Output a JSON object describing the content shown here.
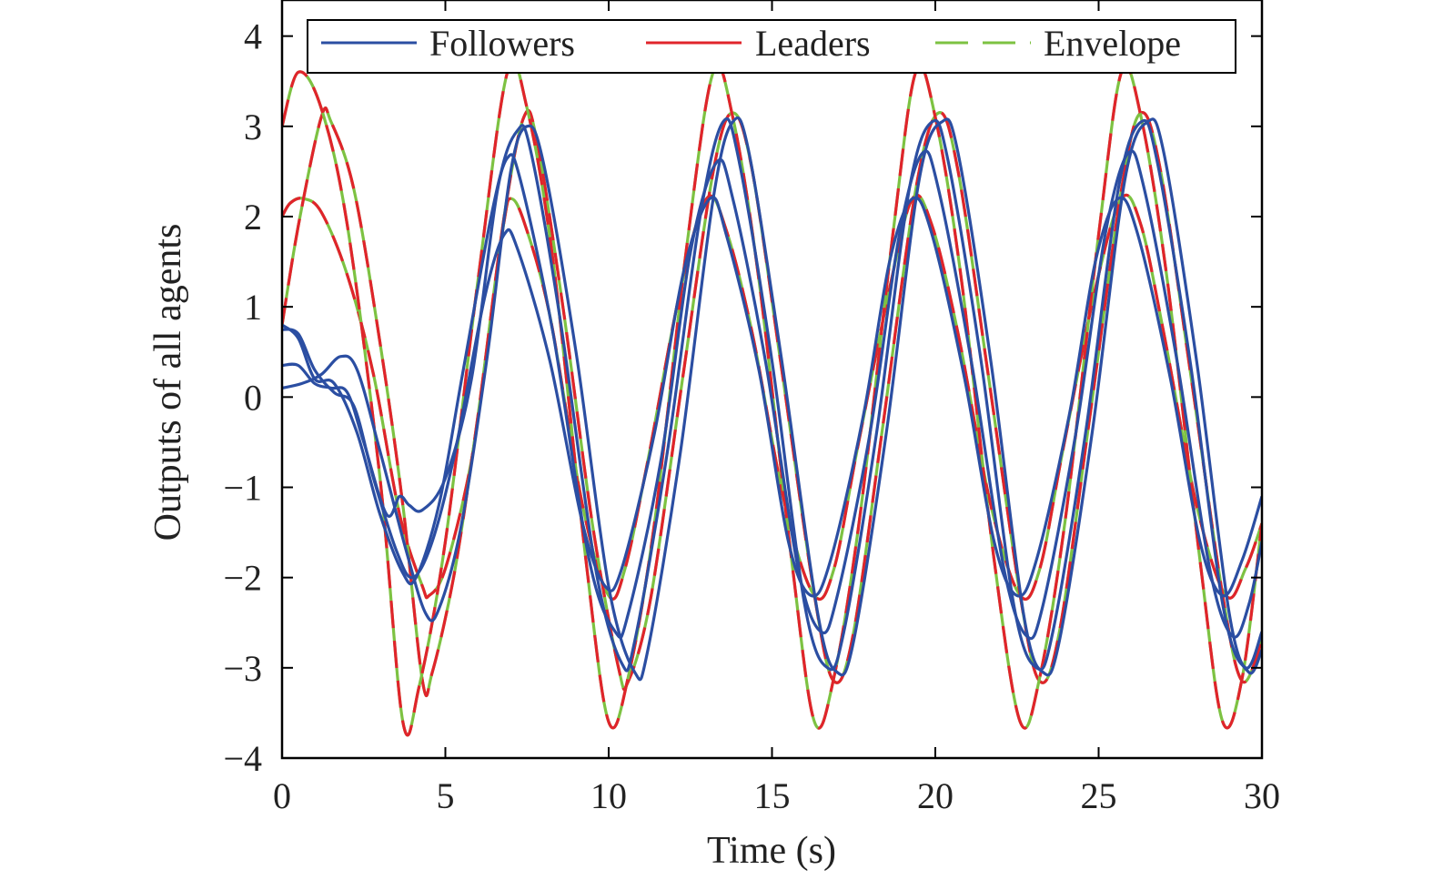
{
  "chart_data": {
    "type": "line",
    "title": "",
    "xlabel": "Time (s)",
    "ylabel": "Outputs of all agents",
    "xlim": [
      0,
      30
    ],
    "ylim": [
      -4,
      4.4
    ],
    "xticks": [
      0,
      5,
      10,
      15,
      20,
      25,
      30
    ],
    "yticks": [
      -4,
      -3,
      -2,
      -1,
      0,
      1,
      2,
      3,
      4
    ],
    "xtick_labels": [
      "0",
      "5",
      "10",
      "15",
      "20",
      "25",
      "30"
    ],
    "ytick_labels": [
      "−4",
      "−3",
      "−2",
      "−1",
      "0",
      "1",
      "2",
      "3",
      "4"
    ],
    "grid": false,
    "legend": {
      "placement": "top",
      "entries": [
        {
          "label": "Followers",
          "color": "#2b4ea2",
          "style": "solid"
        },
        {
          "label": "Leaders",
          "color": "#e0242b",
          "style": "solid"
        },
        {
          "label": "Envelope",
          "color": "#7dc242",
          "style": "dashed"
        }
      ]
    },
    "colors": {
      "followers": "#2b4ea2",
      "leaders": "#e0242b",
      "envelope": "#7dc242"
    },
    "series": [
      {
        "group": "leaders",
        "points": [
          [
            0,
            2.0
          ],
          [
            0.25,
            2.15
          ],
          [
            0.65,
            2.2
          ],
          [
            1.2,
            2.05
          ],
          [
            2.0,
            1.35
          ],
          [
            2.8,
            0.25
          ],
          [
            3.6,
            -1.3
          ],
          [
            4.3,
            -2.1
          ],
          [
            4.5,
            -2.2
          ],
          [
            5.0,
            -1.9
          ],
          [
            5.8,
            -0.7
          ],
          [
            6.4,
            0.9
          ],
          [
            6.8,
            1.95
          ],
          [
            7.0,
            2.2
          ],
          [
            7.4,
            1.95
          ],
          [
            8.2,
            0.9
          ],
          [
            9.2,
            -1.2
          ],
          [
            10.0,
            -2.2
          ],
          [
            10.5,
            -1.9
          ],
          [
            11.2,
            -0.7
          ],
          [
            12.2,
            1.2
          ],
          [
            13.0,
            2.2
          ],
          [
            13.6,
            1.85
          ],
          [
            14.4,
            0.7
          ],
          [
            15.4,
            -1.2
          ],
          [
            16.3,
            -2.2
          ],
          [
            16.9,
            -1.9
          ],
          [
            17.6,
            -0.6
          ],
          [
            18.6,
            1.2
          ],
          [
            19.3,
            2.2
          ],
          [
            19.9,
            1.9
          ],
          [
            20.7,
            0.7
          ],
          [
            21.7,
            -1.2
          ],
          [
            22.6,
            -2.2
          ],
          [
            23.2,
            -1.9
          ],
          [
            23.9,
            -0.6
          ],
          [
            24.9,
            1.2
          ],
          [
            25.7,
            2.2
          ],
          [
            26.3,
            1.9
          ],
          [
            27.0,
            0.7
          ],
          [
            28.0,
            -1.2
          ],
          [
            28.9,
            -2.2
          ],
          [
            29.5,
            -1.9
          ],
          [
            30.0,
            -1.4
          ]
        ]
      },
      {
        "group": "leaders",
        "points": [
          [
            0,
            0.8
          ],
          [
            0.5,
            1.9
          ],
          [
            1.2,
            3.1
          ],
          [
            1.5,
            3.05
          ],
          [
            2.2,
            2.3
          ],
          [
            3.0,
            0.6
          ],
          [
            3.7,
            -1.2
          ],
          [
            4.3,
            -3.15
          ],
          [
            4.6,
            -3.05
          ],
          [
            5.3,
            -1.9
          ],
          [
            6.0,
            -0.2
          ],
          [
            6.8,
            2.0
          ],
          [
            7.4,
            3.1
          ],
          [
            7.8,
            2.85
          ],
          [
            8.6,
            1.0
          ],
          [
            9.5,
            -1.4
          ],
          [
            10.3,
            -3.0
          ],
          [
            10.6,
            -3.15
          ],
          [
            11.3,
            -2.2
          ],
          [
            12.3,
            0.3
          ],
          [
            13.2,
            2.5
          ],
          [
            13.8,
            3.15
          ],
          [
            14.4,
            2.5
          ],
          [
            15.3,
            0.3
          ],
          [
            16.3,
            -2.2
          ],
          [
            16.9,
            -3.15
          ],
          [
            17.5,
            -2.6
          ],
          [
            18.4,
            -0.3
          ],
          [
            19.4,
            2.3
          ],
          [
            20.1,
            3.15
          ],
          [
            20.7,
            2.5
          ],
          [
            21.6,
            0.3
          ],
          [
            22.6,
            -2.2
          ],
          [
            23.2,
            -3.15
          ],
          [
            23.8,
            -2.6
          ],
          [
            24.7,
            -0.3
          ],
          [
            25.7,
            2.3
          ],
          [
            26.3,
            3.15
          ],
          [
            26.9,
            2.5
          ],
          [
            27.8,
            0.3
          ],
          [
            28.8,
            -2.2
          ],
          [
            29.4,
            -3.15
          ],
          [
            30.0,
            -2.7
          ]
        ]
      },
      {
        "group": "leaders",
        "points": [
          [
            0,
            3.0
          ],
          [
            0.5,
            3.6
          ],
          [
            1.2,
            3.2
          ],
          [
            2.0,
            1.9
          ],
          [
            3.0,
            -0.9
          ],
          [
            3.7,
            -3.6
          ],
          [
            4.2,
            -3.2
          ],
          [
            5.0,
            -1.6
          ],
          [
            6.0,
            1.3
          ],
          [
            6.9,
            3.6
          ],
          [
            7.5,
            3.2
          ],
          [
            8.3,
            1.5
          ],
          [
            9.3,
            -1.8
          ],
          [
            10.0,
            -3.6
          ],
          [
            10.6,
            -3.1
          ],
          [
            11.4,
            -1.4
          ],
          [
            12.4,
            1.7
          ],
          [
            13.2,
            3.6
          ],
          [
            13.8,
            3.1
          ],
          [
            14.6,
            1.3
          ],
          [
            15.6,
            -1.8
          ],
          [
            16.3,
            -3.6
          ],
          [
            16.9,
            -3.1
          ],
          [
            17.7,
            -1.3
          ],
          [
            18.7,
            1.8
          ],
          [
            19.4,
            3.6
          ],
          [
            20.0,
            3.1
          ],
          [
            20.8,
            1.3
          ],
          [
            21.8,
            -1.8
          ],
          [
            22.6,
            -3.6
          ],
          [
            23.2,
            -3.1
          ],
          [
            24.0,
            -1.3
          ],
          [
            25.0,
            1.8
          ],
          [
            25.7,
            3.6
          ],
          [
            26.3,
            3.1
          ],
          [
            27.1,
            1.3
          ],
          [
            28.1,
            -1.8
          ],
          [
            28.8,
            -3.6
          ],
          [
            29.4,
            -3.1
          ],
          [
            30.0,
            -1.4
          ]
        ]
      },
      {
        "group": "followers",
        "points": [
          [
            0,
            0.75
          ],
          [
            0.5,
            0.7
          ],
          [
            1.0,
            0.3
          ],
          [
            1.6,
            0.05
          ],
          [
            2.2,
            -0.1
          ],
          [
            2.8,
            -0.9
          ],
          [
            3.5,
            -1.7
          ],
          [
            4.0,
            -2.0
          ],
          [
            4.6,
            -1.6
          ],
          [
            5.3,
            -0.6
          ],
          [
            6.2,
            1.1
          ],
          [
            6.8,
            1.8
          ],
          [
            7.2,
            1.65
          ],
          [
            8.2,
            0.4
          ],
          [
            9.2,
            -1.4
          ],
          [
            9.9,
            -2.1
          ],
          [
            10.4,
            -1.9
          ],
          [
            11.4,
            -0.4
          ],
          [
            12.3,
            1.4
          ],
          [
            13.1,
            2.2
          ],
          [
            13.6,
            1.8
          ],
          [
            14.6,
            0.3
          ],
          [
            15.5,
            -1.6
          ],
          [
            16.2,
            -2.2
          ],
          [
            16.8,
            -1.8
          ],
          [
            17.8,
            -0.2
          ],
          [
            18.6,
            1.5
          ],
          [
            19.3,
            2.2
          ],
          [
            19.9,
            1.8
          ],
          [
            20.9,
            0.2
          ],
          [
            21.8,
            -1.6
          ],
          [
            22.5,
            -2.2
          ],
          [
            23.1,
            -1.8
          ],
          [
            24.1,
            -0.2
          ],
          [
            24.9,
            1.5
          ],
          [
            25.6,
            2.2
          ],
          [
            26.2,
            1.8
          ],
          [
            27.2,
            0.2
          ],
          [
            28.1,
            -1.6
          ],
          [
            28.8,
            -2.2
          ],
          [
            29.4,
            -1.8
          ],
          [
            30.0,
            -1.1
          ]
        ]
      },
      {
        "group": "followers",
        "points": [
          [
            0,
            0.8
          ],
          [
            0.5,
            0.65
          ],
          [
            1.0,
            0.2
          ],
          [
            1.6,
            0.15
          ],
          [
            2.3,
            -0.4
          ],
          [
            3.0,
            -1.3
          ],
          [
            3.7,
            -1.95
          ],
          [
            4.1,
            -2.0
          ],
          [
            4.8,
            -1.2
          ],
          [
            5.5,
            0.2
          ],
          [
            6.4,
            2.0
          ],
          [
            6.9,
            2.65
          ],
          [
            7.3,
            2.4
          ],
          [
            8.3,
            0.7
          ],
          [
            9.4,
            -1.8
          ],
          [
            10.2,
            -2.6
          ],
          [
            10.6,
            -2.4
          ],
          [
            11.6,
            -0.7
          ],
          [
            12.5,
            1.6
          ],
          [
            13.3,
            2.6
          ],
          [
            13.8,
            2.2
          ],
          [
            14.8,
            0.4
          ],
          [
            15.8,
            -1.9
          ],
          [
            16.5,
            -2.6
          ],
          [
            17.0,
            -2.2
          ],
          [
            18.0,
            -0.4
          ],
          [
            18.9,
            1.8
          ],
          [
            19.6,
            2.7
          ],
          [
            20.1,
            2.3
          ],
          [
            21.1,
            0.4
          ],
          [
            22.1,
            -1.9
          ],
          [
            22.8,
            -2.65
          ],
          [
            23.3,
            -2.3
          ],
          [
            24.3,
            -0.4
          ],
          [
            25.2,
            1.8
          ],
          [
            25.9,
            2.7
          ],
          [
            26.4,
            2.3
          ],
          [
            27.4,
            0.4
          ],
          [
            28.4,
            -1.9
          ],
          [
            29.1,
            -2.65
          ],
          [
            29.6,
            -2.3
          ],
          [
            30.0,
            -1.6
          ]
        ]
      },
      {
        "group": "followers",
        "points": [
          [
            0,
            0.35
          ],
          [
            0.5,
            0.35
          ],
          [
            1.0,
            0.15
          ],
          [
            1.5,
            0.1
          ],
          [
            2.0,
            0.05
          ],
          [
            2.5,
            -0.5
          ],
          [
            3.2,
            -1.3
          ],
          [
            3.6,
            -1.1
          ],
          [
            3.9,
            -1.2
          ],
          [
            4.3,
            -1.25
          ],
          [
            5.0,
            -0.9
          ],
          [
            5.8,
            0.2
          ],
          [
            6.6,
            2.3
          ],
          [
            7.2,
            2.95
          ],
          [
            7.6,
            2.75
          ],
          [
            8.5,
            0.9
          ],
          [
            9.6,
            -1.9
          ],
          [
            10.4,
            -2.95
          ],
          [
            10.8,
            -2.7
          ],
          [
            11.8,
            -0.6
          ],
          [
            12.8,
            2.0
          ],
          [
            13.5,
            3.05
          ],
          [
            14.0,
            2.6
          ],
          [
            15.0,
            0.4
          ],
          [
            16.0,
            -2.3
          ],
          [
            16.7,
            -3.0
          ],
          [
            17.2,
            -2.6
          ],
          [
            18.2,
            -0.4
          ],
          [
            19.2,
            2.3
          ],
          [
            19.9,
            3.05
          ],
          [
            20.4,
            2.6
          ],
          [
            21.4,
            0.4
          ],
          [
            22.4,
            -2.3
          ],
          [
            23.1,
            -3.0
          ],
          [
            23.6,
            -2.6
          ],
          [
            24.6,
            -0.4
          ],
          [
            25.6,
            2.3
          ],
          [
            26.3,
            3.05
          ],
          [
            26.8,
            2.6
          ],
          [
            27.8,
            0.4
          ],
          [
            28.8,
            -2.3
          ],
          [
            29.5,
            -3.0
          ],
          [
            30.0,
            -2.6
          ]
        ]
      },
      {
        "group": "followers",
        "points": [
          [
            0,
            0.1
          ],
          [
            0.6,
            0.15
          ],
          [
            1.2,
            0.25
          ],
          [
            1.8,
            0.45
          ],
          [
            2.3,
            0.3
          ],
          [
            3.0,
            -0.6
          ],
          [
            3.8,
            -1.7
          ],
          [
            4.4,
            -2.4
          ],
          [
            4.8,
            -2.35
          ],
          [
            5.5,
            -1.4
          ],
          [
            6.3,
            0.5
          ],
          [
            7.0,
            2.5
          ],
          [
            7.5,
            3.0
          ],
          [
            8.0,
            2.6
          ],
          [
            9.0,
            0.5
          ],
          [
            10.0,
            -2.1
          ],
          [
            10.8,
            -3.05
          ],
          [
            11.2,
            -2.8
          ],
          [
            12.2,
            -0.6
          ],
          [
            13.2,
            2.2
          ],
          [
            13.8,
            3.05
          ],
          [
            14.3,
            2.7
          ],
          [
            15.3,
            0.4
          ],
          [
            16.4,
            -2.4
          ],
          [
            17.0,
            -3.05
          ],
          [
            17.5,
            -2.7
          ],
          [
            18.5,
            -0.4
          ],
          [
            19.5,
            2.4
          ],
          [
            20.2,
            3.05
          ],
          [
            20.7,
            2.7
          ],
          [
            21.7,
            0.4
          ],
          [
            22.7,
            -2.4
          ],
          [
            23.3,
            -3.05
          ],
          [
            23.8,
            -2.7
          ],
          [
            24.8,
            -0.4
          ],
          [
            25.8,
            2.4
          ],
          [
            26.5,
            3.05
          ],
          [
            27.0,
            2.7
          ],
          [
            28.0,
            0.4
          ],
          [
            29.0,
            -2.4
          ],
          [
            29.6,
            -3.05
          ],
          [
            30.0,
            -2.8
          ]
        ]
      }
    ]
  }
}
